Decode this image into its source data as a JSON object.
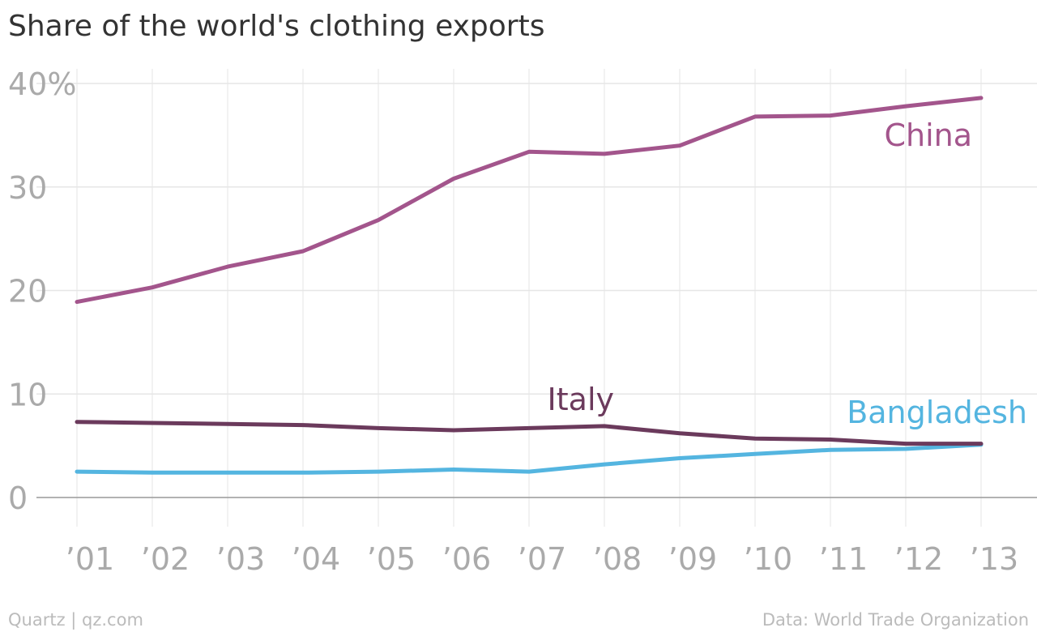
{
  "chart_data": {
    "type": "line",
    "title": "Share of the world's clothing exports",
    "xlabel": "",
    "ylabel": "",
    "categories": [
      "’01",
      "’02",
      "’03",
      "’04",
      "’05",
      "’06",
      "’07",
      "’08",
      "’09",
      "’10",
      "’11",
      "’12",
      "’13"
    ],
    "y_ticks": [
      "0",
      "10",
      "20",
      "30",
      "40%"
    ],
    "ylim": [
      0,
      40
    ],
    "grid": true,
    "legend": "inline labels near line ends",
    "series": [
      {
        "name": "China",
        "color": "#a3558c",
        "values": [
          18.9,
          20.3,
          22.3,
          23.8,
          26.8,
          30.8,
          33.4,
          33.2,
          34.0,
          36.8,
          36.9,
          37.8,
          38.6
        ]
      },
      {
        "name": "Italy",
        "color": "#6b3a5c",
        "values": [
          7.3,
          7.2,
          7.1,
          7.0,
          6.7,
          6.5,
          6.7,
          6.9,
          6.2,
          5.7,
          5.6,
          5.2,
          5.2
        ]
      },
      {
        "name": "Bangladesh",
        "color": "#54b5e0",
        "values": [
          2.5,
          2.4,
          2.4,
          2.4,
          2.5,
          2.7,
          2.5,
          3.2,
          3.8,
          4.2,
          4.6,
          4.7,
          5.1
        ]
      }
    ]
  },
  "footer": {
    "source_left": "Quartz | qz.com",
    "source_right": "Data: World Trade Organization"
  }
}
